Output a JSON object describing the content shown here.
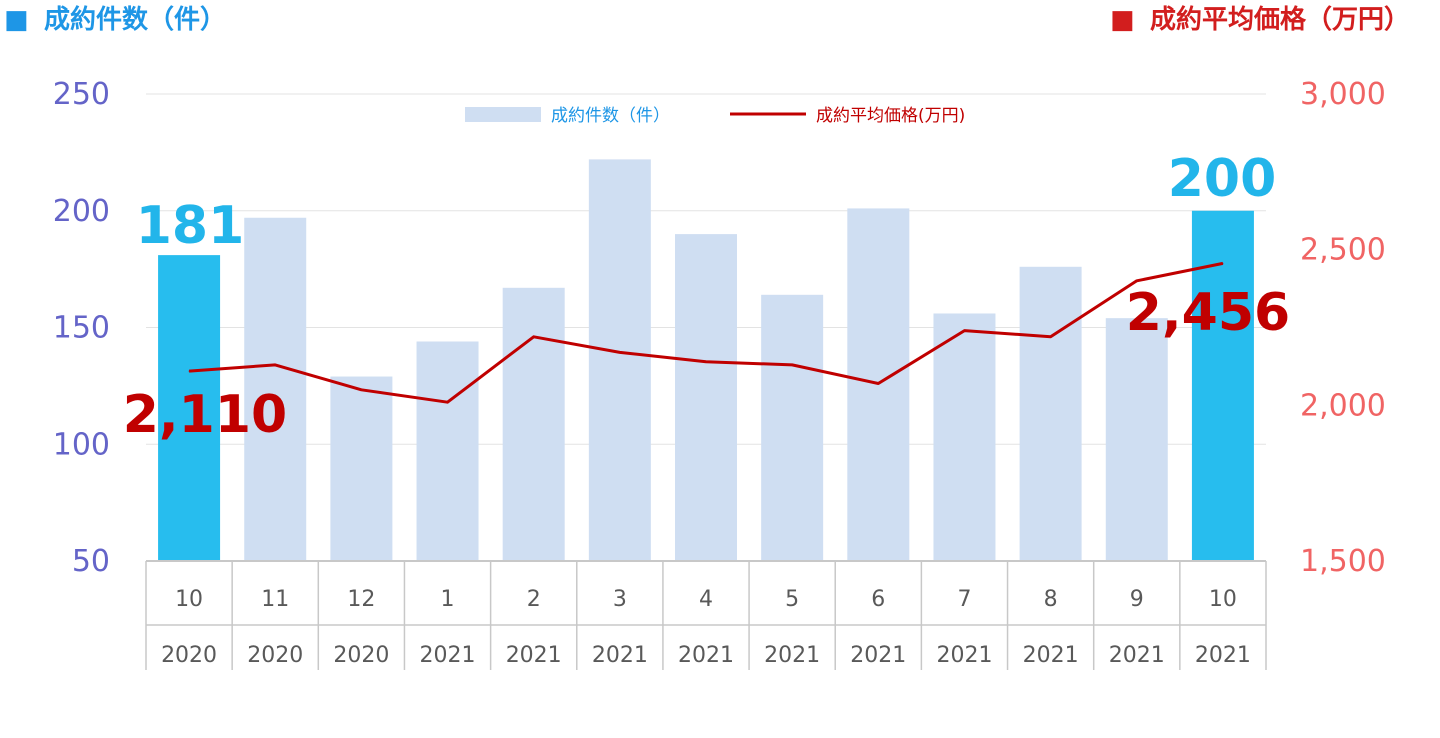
{
  "header": {
    "left_marker": "■",
    "left_title": "成約件数（件）",
    "right_marker": "■",
    "right_title": "成約平均価格（万円）"
  },
  "colors": {
    "bar_normal": "#cfdef2",
    "bar_highlight": "#27bdee",
    "line": "#c00000",
    "left_axis_text": "#6464c8",
    "right_axis_text": "#f06464",
    "left_header": "#1e96e6",
    "right_header": "#d21e1e",
    "callout_count": "#22b5ea",
    "callout_price": "#c00000"
  },
  "chart_data": {
    "type": "bar",
    "categories": [
      "10",
      "11",
      "12",
      "1",
      "2",
      "3",
      "4",
      "5",
      "6",
      "7",
      "8",
      "9",
      "10"
    ],
    "years": [
      "2020",
      "2020",
      "2020",
      "2021",
      "2021",
      "2021",
      "2021",
      "2021",
      "2021",
      "2021",
      "2021",
      "2021",
      "2021"
    ],
    "series": [
      {
        "name": "成約件数（件）",
        "type": "bar",
        "axis": "left",
        "values": [
          181,
          197,
          129,
          144,
          167,
          222,
          190,
          164,
          201,
          156,
          176,
          154,
          200
        ],
        "highlight": [
          0,
          12
        ]
      },
      {
        "name": "成約平均価格(万円)",
        "type": "line",
        "axis": "right",
        "values": [
          2110,
          2130,
          2050,
          2010,
          2220,
          2170,
          2140,
          2130,
          2070,
          2240,
          2220,
          2400,
          2456
        ]
      }
    ],
    "left_axis": {
      "min": 50,
      "max": 250,
      "ticks": [
        "250",
        "200",
        "150",
        "100",
        "50"
      ],
      "tick_values": [
        250,
        200,
        150,
        100,
        50
      ]
    },
    "right_axis": {
      "min": 1500,
      "max": 3000,
      "ticks": [
        "3,000",
        "2,500",
        "2,000",
        "1,500"
      ],
      "tick_values": [
        3000,
        2500,
        2000,
        1500
      ]
    },
    "gridlines": true,
    "legend": {
      "position": "top-center",
      "bar_label": "成約件数（件）",
      "line_label": "成約平均価格(万円)"
    },
    "callouts": {
      "first_count": "181",
      "last_count": "200",
      "first_price": "2,110",
      "last_price": "2,456"
    }
  }
}
